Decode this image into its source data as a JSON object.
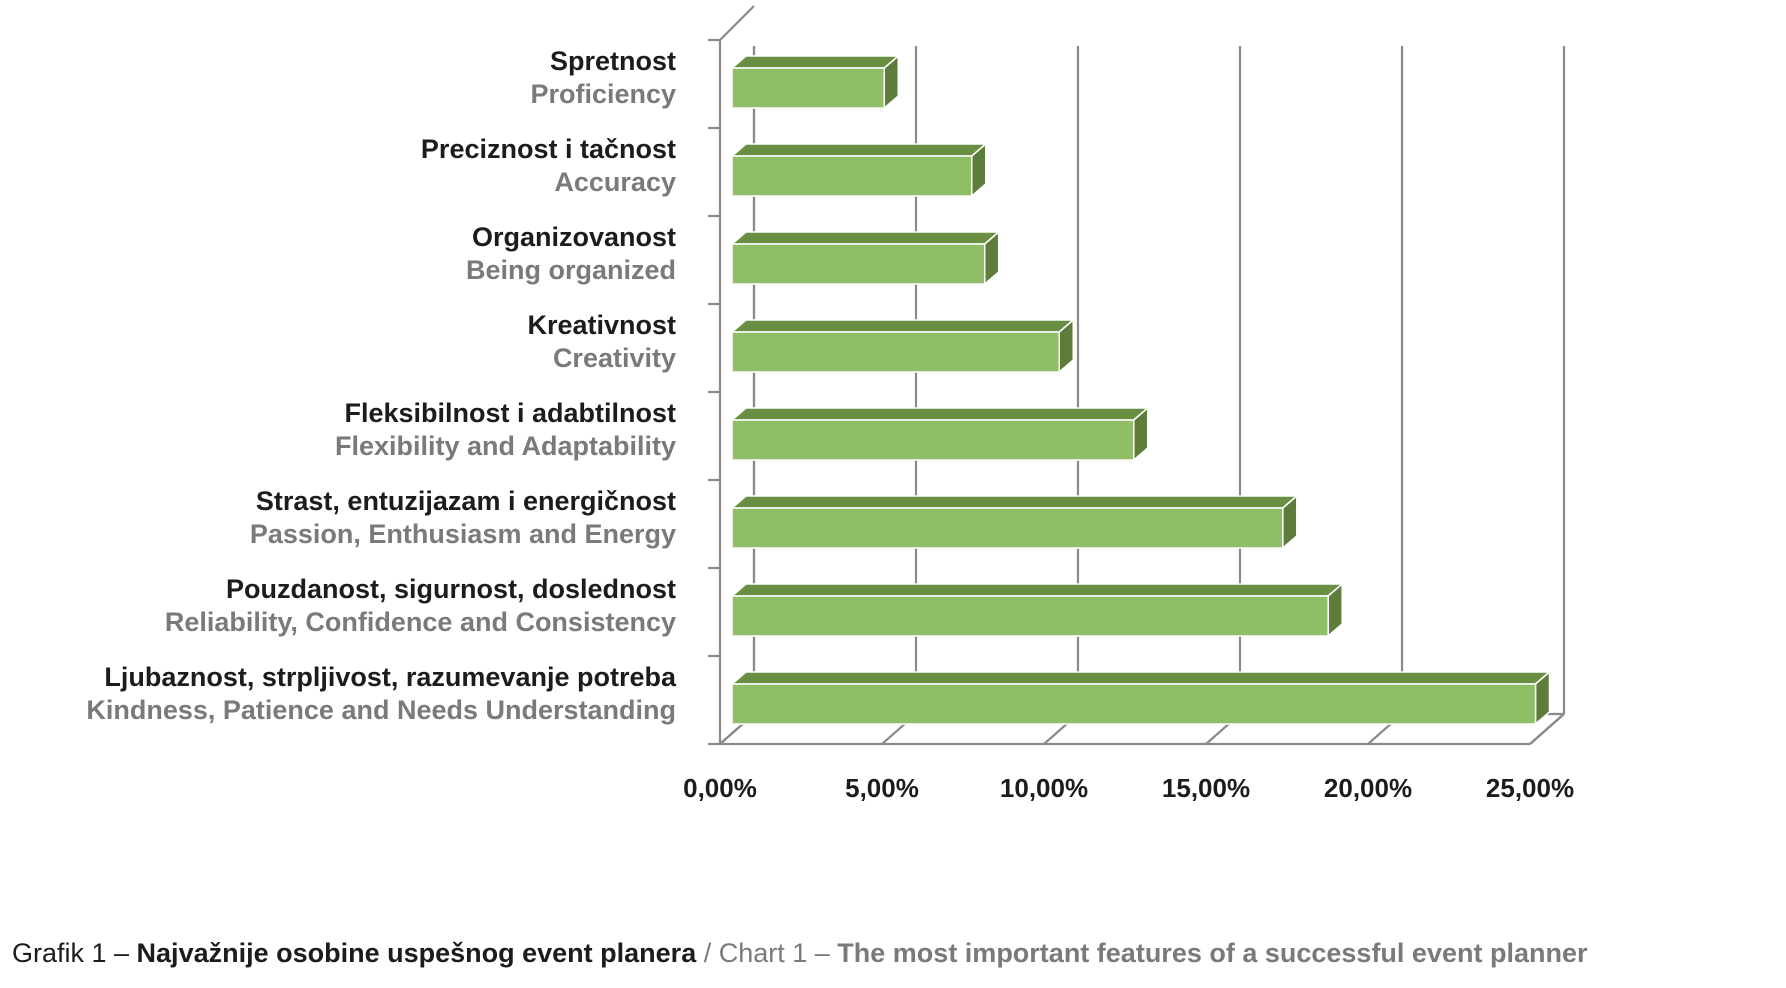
{
  "chart_data": {
    "type": "bar",
    "orientation": "horizontal",
    "categories": [
      {
        "label": "Spretnost",
        "sublabel": "Proficiency"
      },
      {
        "label": "Preciznost i tačnost",
        "sublabel": "Accuracy"
      },
      {
        "label": "Organizovanost",
        "sublabel": "Being organized"
      },
      {
        "label": "Kreativnost",
        "sublabel": "Creativity"
      },
      {
        "label": "Fleksibilnost i adabtilnost",
        "sublabel": "Flexibility and Adaptability"
      },
      {
        "label": "Strast, entuzijazam i energičnost",
        "sublabel": "Passion, Enthusiasm and Energy"
      },
      {
        "label": "Pouzdanost, sigurnost, doslednost",
        "sublabel": "Reliability, Confidence and Consistency"
      },
      {
        "label": "Ljubaznost, strpljivost, razumevanje potreba",
        "sublabel": "Kindness, Patience and Needs Understanding"
      }
    ],
    "values": [
      4.7,
      7.4,
      7.8,
      10.1,
      12.4,
      17.0,
      18.4,
      24.8
    ],
    "xlim": [
      0,
      25
    ],
    "ticks": [
      "0,00%",
      "5,00%",
      "10,00%",
      "15,00%",
      "20,00%",
      "25,00%"
    ],
    "grid": true,
    "colors": {
      "bar_front": "#8fbe67",
      "bar_top": "#6a8f43",
      "bar_side": "#5e7d3b",
      "grid": "#8a8a8a"
    }
  },
  "caption": {
    "prefix": "Grafik 1 – ",
    "title_sr": "Najvažnije osobine uspešnog event planera",
    "separator": " / Chart 1 – ",
    "title_en": "The most important features of a successful event planner"
  }
}
